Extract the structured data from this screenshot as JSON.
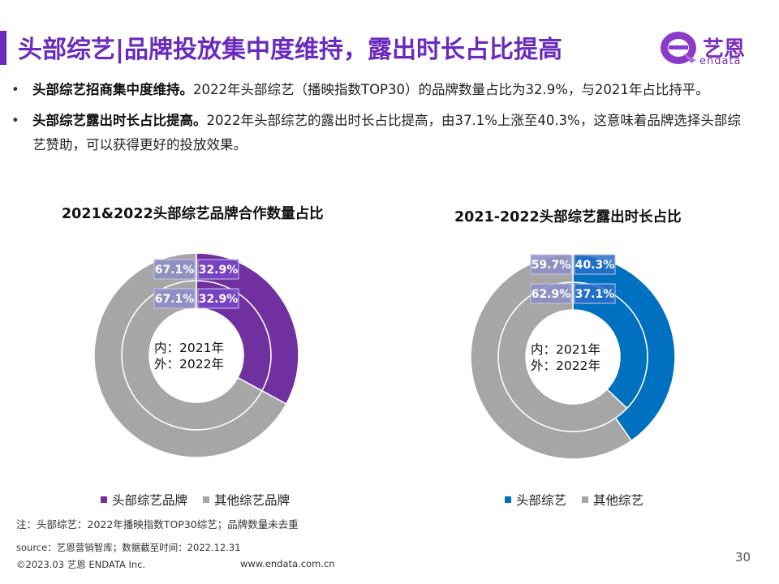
{
  "header": {
    "title": "头部综艺|品牌投放集中度维持，露出时长占比提高",
    "logo_text": "艺恩",
    "logo_sub": "endata"
  },
  "bullets": [
    {
      "bold": "头部综艺招商集中度维持。",
      "text": "2022年头部综艺（播映指数TOP30）的品牌数量占比为32.9%，与2021年占比持平。"
    },
    {
      "bold": "头部综艺露出时长占比提高。",
      "text": "2022年头部综艺的露出时长占比提高，由37.1%上涨至40.3%，这意味着品牌选择头部综艺赞助，可以获得更好的投放效果。"
    }
  ],
  "chart_data": [
    {
      "type": "pie",
      "subtype": "nested-donut",
      "title": "2021&2022头部综艺品牌合作数量占比",
      "center_label_line1": "内：2021年",
      "center_label_line2": "外：2022年",
      "categories": [
        "头部综艺品牌",
        "其他综艺品牌"
      ],
      "colors": [
        "#7030a0",
        "#a6a6a6"
      ],
      "series": [
        {
          "name": "2021",
          "ring": "inner",
          "values": [
            32.9,
            67.1
          ],
          "labels": [
            "32.9%",
            "67.1%"
          ]
        },
        {
          "name": "2022",
          "ring": "outer",
          "values": [
            32.9,
            67.1
          ],
          "labels": [
            "32.9%",
            "67.1%"
          ]
        }
      ]
    },
    {
      "type": "pie",
      "subtype": "nested-donut",
      "title": "2021-2022头部综艺露出时长占比",
      "center_label_line1": "内：2021年",
      "center_label_line2": "外：2022年",
      "categories": [
        "头部综艺",
        "其他综艺"
      ],
      "colors": [
        "#0070c0",
        "#a6a6a6"
      ],
      "series": [
        {
          "name": "2021",
          "ring": "inner",
          "values": [
            37.1,
            62.9
          ],
          "labels": [
            "37.1%",
            "62.9%"
          ]
        },
        {
          "name": "2022",
          "ring": "outer",
          "values": [
            40.3,
            59.7
          ],
          "labels": [
            "40.3%",
            "59.7%"
          ]
        }
      ]
    }
  ],
  "footer": {
    "note": "注：头部综艺：2022年播映指数TOP30综艺；品牌数量未去重",
    "source": "source：艺恩营销智库；数据截至时间：2022.12.31",
    "copyright": "©2023.03 艺恩 ENDATA Inc.",
    "website": "www.endata.com.cn",
    "page": "30"
  }
}
